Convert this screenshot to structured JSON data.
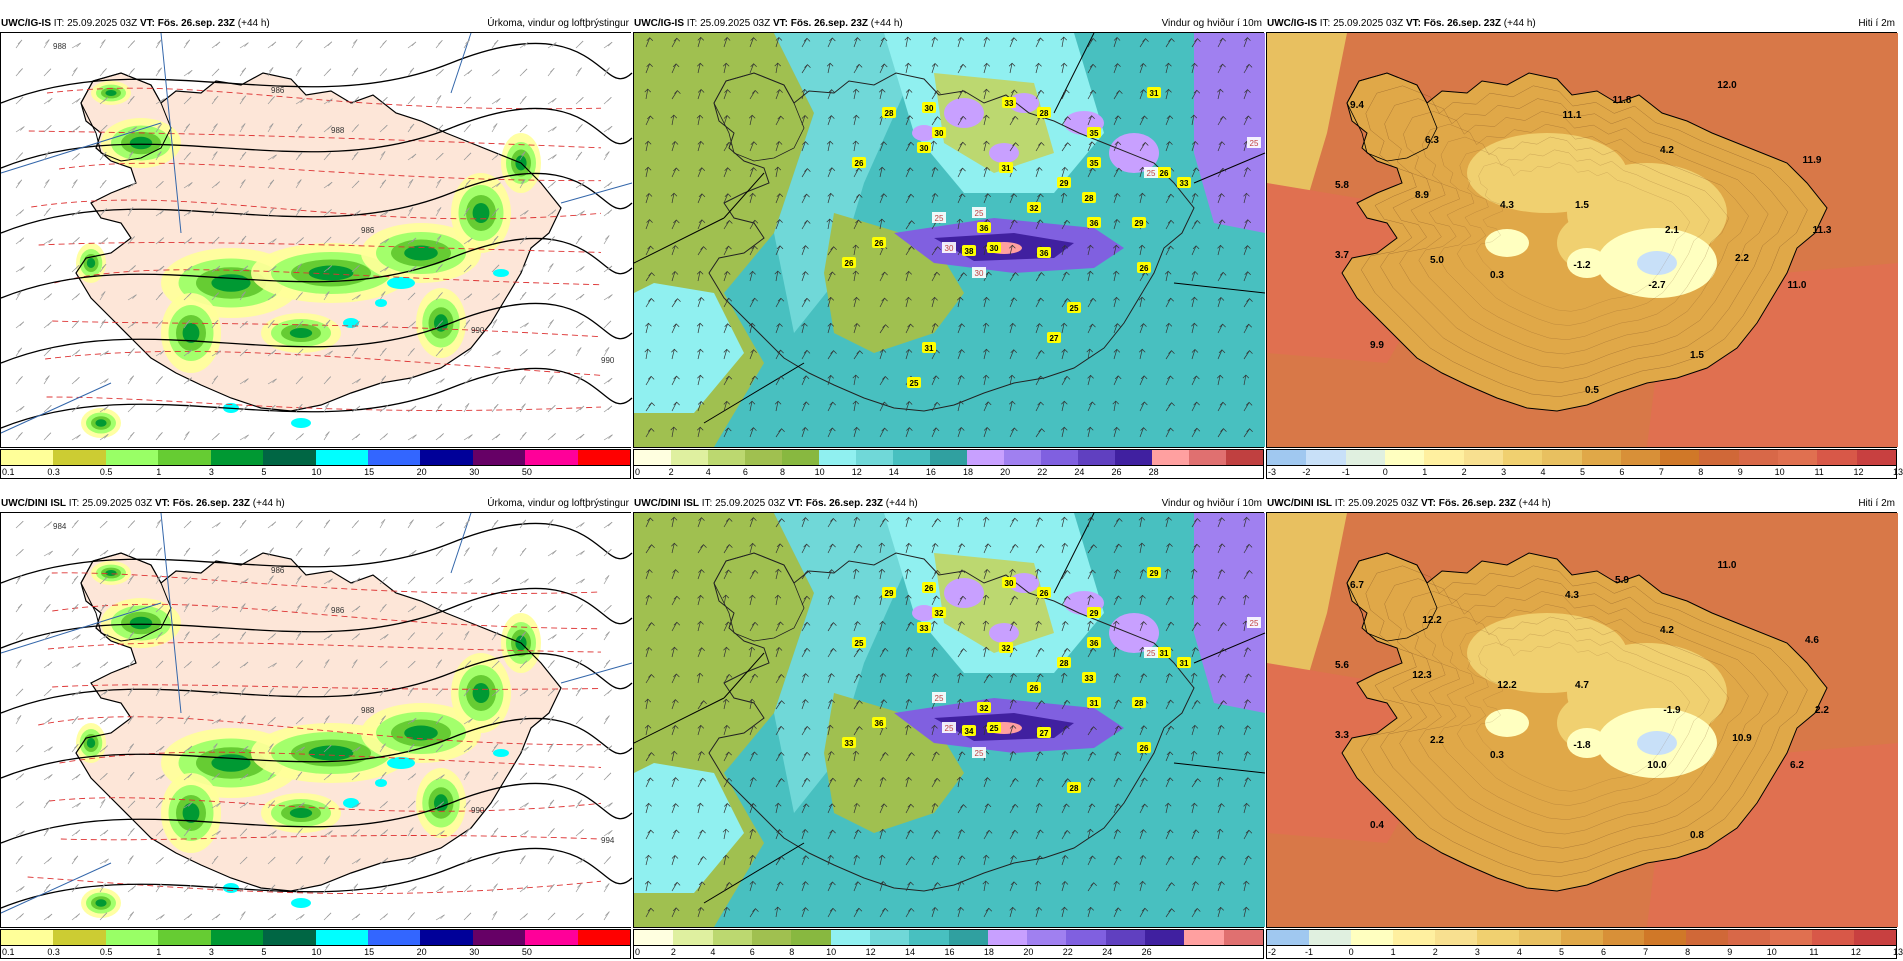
{
  "panels": [
    {
      "id": "igis-precip",
      "model": "UWC/IG-IS",
      "init_prefix": "IT:",
      "init_time": "25.09.2025 03Z",
      "valid_prefix": "VT:",
      "valid_time": "Fös. 26.sep. 23Z",
      "lead": "(+44 h)",
      "title": "Úrkoma, vindur og loftþrýstingur",
      "type": "precip",
      "colorbar": {
        "colors": [
          "#ffff99",
          "#cccc33",
          "#99ff66",
          "#66cc33",
          "#009933",
          "#006644",
          "#00ffff",
          "#3366ff",
          "#000099",
          "#660066",
          "#ff0099",
          "#ff0000"
        ],
        "labels": [
          "0.1",
          "0.3",
          "0.5",
          "1",
          "3",
          "5",
          "10",
          "15",
          "20",
          "30",
          "50"
        ]
      },
      "isobar_labels": [
        "988",
        "986",
        "988",
        "986",
        "990",
        "990"
      ]
    },
    {
      "id": "igis-wind",
      "model": "UWC/IG-IS",
      "init_prefix": "IT:",
      "init_time": "25.09.2025 03Z",
      "valid_prefix": "VT:",
      "valid_time": "Fös. 26.sep. 23Z",
      "lead": "(+44 h)",
      "title": "Vindur og hviður í 10m",
      "type": "wind",
      "colorbar": {
        "colors": [
          "#ffffe0",
          "#dff0a0",
          "#bcd870",
          "#a0c050",
          "#88b840",
          "#90f0f0",
          "#70d8d8",
          "#48c0c0",
          "#30a0a0",
          "#c8a0ff",
          "#a080f0",
          "#8060e0",
          "#6040c0",
          "#4020a0",
          "#ffa0a0",
          "#e07070",
          "#c04040"
        ],
        "labels": [
          "0",
          "2",
          "4",
          "6",
          "8",
          "10",
          "12",
          "14",
          "16",
          "18",
          "20",
          "22",
          "24",
          "26",
          "28"
        ]
      },
      "wind_labels": [
        "28",
        "30",
        "33",
        "28",
        "30",
        "30",
        "26",
        "31",
        "29",
        "35",
        "31",
        "35",
        "26",
        "32",
        "28",
        "33",
        "36",
        "36",
        "26",
        "26",
        "38",
        "36",
        "30",
        "29",
        "25",
        "26",
        "27",
        "31",
        "25"
      ],
      "gust_labels": [
        "25",
        "25",
        "30",
        "30",
        "25",
        "25"
      ]
    },
    {
      "id": "igis-temp",
      "model": "UWC/IG-IS",
      "init_prefix": "IT:",
      "init_time": "25.09.2025 03Z",
      "valid_prefix": "VT:",
      "valid_time": "Fös. 26.sep. 23Z",
      "lead": "(+44 h)",
      "title": "Hiti í 2m",
      "type": "temp",
      "colorbar": {
        "colors": [
          "#a0c8f0",
          "#c8e0f8",
          "#e0f0e0",
          "#ffffc0",
          "#fff0a0",
          "#f8e090",
          "#f0d070",
          "#e8c060",
          "#e0a848",
          "#d89038",
          "#d07828",
          "#d06838",
          "#d86848",
          "#e07050",
          "#d85848",
          "#c84040"
        ],
        "labels": [
          "-3",
          "-2",
          "-1",
          "0",
          "1",
          "2",
          "3",
          "4",
          "5",
          "6",
          "7",
          "8",
          "9",
          "10",
          "11",
          "12",
          "13"
        ]
      },
      "temp_labels": [
        "9.4",
        "6.3",
        "11.1",
        "11.8",
        "12.0",
        "5.8",
        "8.9",
        "4.3",
        "1.5",
        "4.2",
        "11.9",
        "3.7",
        "5.0",
        "0.3",
        "-1.2",
        "2.1",
        "11.3",
        "2.2",
        "-2.7",
        "11.0",
        "9.9",
        "1.5",
        "0.5"
      ]
    },
    {
      "id": "dini-precip",
      "model": "UWC/DINI ISL",
      "init_prefix": "IT:",
      "init_time": "25.09.2025 03Z",
      "valid_prefix": "VT:",
      "valid_time": "Fös. 26.sep. 23Z",
      "lead": "(+44 h)",
      "title": "Úrkoma, vindur og loftþrýstingur",
      "type": "precip",
      "colorbar": {
        "colors": [
          "#ffff99",
          "#cccc33",
          "#99ff66",
          "#66cc33",
          "#009933",
          "#006644",
          "#00ffff",
          "#3366ff",
          "#000099",
          "#660066",
          "#ff0099",
          "#ff0000"
        ],
        "labels": [
          "0.1",
          "0.3",
          "0.5",
          "1",
          "3",
          "5",
          "10",
          "15",
          "20",
          "30",
          "50"
        ]
      },
      "isobar_labels": [
        "984",
        "986",
        "986",
        "988",
        "990",
        "994"
      ]
    },
    {
      "id": "dini-wind",
      "model": "UWC/DINI ISL",
      "init_prefix": "IT:",
      "init_time": "25.09.2025 03Z",
      "valid_prefix": "VT:",
      "valid_time": "Fös. 26.sep. 23Z",
      "lead": "(+44 h)",
      "title": "Vindur og hviður í 10m",
      "type": "wind",
      "colorbar": {
        "colors": [
          "#ffffe0",
          "#dff0a0",
          "#bcd870",
          "#a0c050",
          "#88b840",
          "#90f0f0",
          "#70d8d8",
          "#48c0c0",
          "#30a0a0",
          "#c8a0ff",
          "#a080f0",
          "#8060e0",
          "#6040c0",
          "#4020a0",
          "#ffa0a0",
          "#e07070"
        ],
        "labels": [
          "0",
          "2",
          "4",
          "6",
          "8",
          "10",
          "12",
          "14",
          "16",
          "18",
          "20",
          "22",
          "24",
          "26"
        ]
      },
      "wind_labels": [
        "29",
        "26",
        "30",
        "26",
        "33",
        "32",
        "25",
        "32",
        "28",
        "29",
        "29",
        "36",
        "31",
        "26",
        "33",
        "31",
        "32",
        "31",
        "36",
        "33",
        "34",
        "27",
        "25",
        "28",
        "28",
        "26"
      ],
      "gust_labels": [
        "25",
        "25",
        "25",
        "25",
        "25"
      ]
    },
    {
      "id": "dini-temp",
      "model": "UWC/DINI ISL",
      "init_prefix": "IT:",
      "init_time": "25.09.2025 03Z",
      "valid_prefix": "VT:",
      "valid_time": "Fös. 26.sep. 23Z",
      "lead": "(+44 h)",
      "title": "Hiti í 2m",
      "type": "temp",
      "colorbar": {
        "colors": [
          "#a0c8f0",
          "#e0f0e0",
          "#ffffc0",
          "#fff0a0",
          "#f8e090",
          "#f0d070",
          "#e8c060",
          "#e0a848",
          "#d89038",
          "#d07828",
          "#d06838",
          "#d86848",
          "#e07050",
          "#d85848",
          "#c84040"
        ],
        "labels": [
          "-2",
          "-1",
          "0",
          "1",
          "2",
          "3",
          "4",
          "5",
          "6",
          "7",
          "8",
          "9",
          "10",
          "11",
          "12",
          "13"
        ]
      },
      "temp_labels": [
        "6.7",
        "12.2",
        "4.3",
        "5.9",
        "11.0",
        "5.6",
        "12.3",
        "12.2",
        "4.7",
        "4.2",
        "4.6",
        "3.3",
        "2.2",
        "0.3",
        "-1.8",
        "-1.9",
        "2.2",
        "10.9",
        "10.0",
        "6.2",
        "0.4",
        "0.8"
      ]
    }
  ]
}
